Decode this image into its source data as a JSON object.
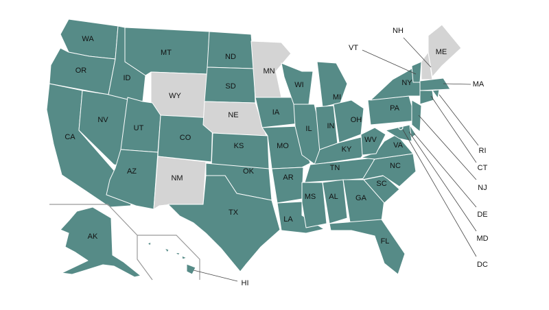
{
  "colors": {
    "active": "#568b87",
    "inactive": "#d4d4d4"
  },
  "states": [
    {
      "abbr": "WA",
      "status": "active"
    },
    {
      "abbr": "OR",
      "status": "active"
    },
    {
      "abbr": "CA",
      "status": "active"
    },
    {
      "abbr": "NV",
      "status": "active"
    },
    {
      "abbr": "ID",
      "status": "active"
    },
    {
      "abbr": "MT",
      "status": "active"
    },
    {
      "abbr": "WY",
      "status": "inactive"
    },
    {
      "abbr": "UT",
      "status": "active"
    },
    {
      "abbr": "CO",
      "status": "active"
    },
    {
      "abbr": "AZ",
      "status": "active"
    },
    {
      "abbr": "NM",
      "status": "inactive"
    },
    {
      "abbr": "ND",
      "status": "active"
    },
    {
      "abbr": "SD",
      "status": "active"
    },
    {
      "abbr": "NE",
      "status": "inactive"
    },
    {
      "abbr": "KS",
      "status": "active"
    },
    {
      "abbr": "OK",
      "status": "active"
    },
    {
      "abbr": "TX",
      "status": "active"
    },
    {
      "abbr": "MN",
      "status": "inactive"
    },
    {
      "abbr": "IA",
      "status": "active"
    },
    {
      "abbr": "MO",
      "status": "active"
    },
    {
      "abbr": "AR",
      "status": "active"
    },
    {
      "abbr": "LA",
      "status": "active"
    },
    {
      "abbr": "WI",
      "status": "active"
    },
    {
      "abbr": "IL",
      "status": "active"
    },
    {
      "abbr": "MI",
      "status": "active"
    },
    {
      "abbr": "IN",
      "status": "active"
    },
    {
      "abbr": "OH",
      "status": "active"
    },
    {
      "abbr": "KY",
      "status": "active"
    },
    {
      "abbr": "TN",
      "status": "active"
    },
    {
      "abbr": "MS",
      "status": "active"
    },
    {
      "abbr": "AL",
      "status": "active"
    },
    {
      "abbr": "GA",
      "status": "active"
    },
    {
      "abbr": "FL",
      "status": "active"
    },
    {
      "abbr": "SC",
      "status": "active"
    },
    {
      "abbr": "NC",
      "status": "active"
    },
    {
      "abbr": "VA",
      "status": "active"
    },
    {
      "abbr": "WV",
      "status": "active"
    },
    {
      "abbr": "PA",
      "status": "active"
    },
    {
      "abbr": "NY",
      "status": "active"
    },
    {
      "abbr": "VT",
      "status": "active"
    },
    {
      "abbr": "NH",
      "status": "inactive"
    },
    {
      "abbr": "ME",
      "status": "inactive"
    },
    {
      "abbr": "MA",
      "status": "active"
    },
    {
      "abbr": "CT",
      "status": "active"
    },
    {
      "abbr": "RI",
      "status": "active"
    },
    {
      "abbr": "NJ",
      "status": "active"
    },
    {
      "abbr": "DE",
      "status": "active"
    },
    {
      "abbr": "MD",
      "status": "active"
    },
    {
      "abbr": "DC",
      "status": "active"
    },
    {
      "abbr": "AK",
      "status": "active"
    },
    {
      "abbr": "HI",
      "status": "active"
    }
  ]
}
